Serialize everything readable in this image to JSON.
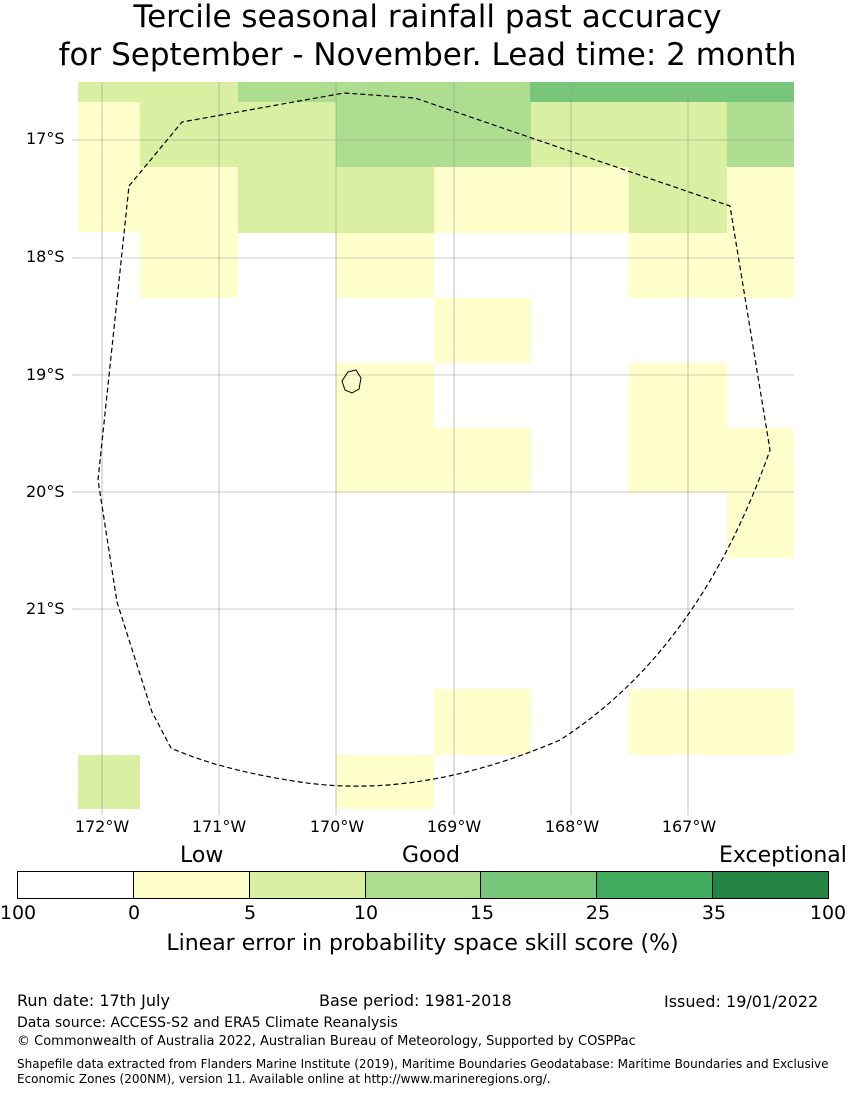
{
  "title": {
    "line1": "Tercile seasonal rainfall past accuracy",
    "line2": "for September - November. Lead time: 2 month"
  },
  "map": {
    "lat_labels": [
      "17°S",
      "18°S",
      "19°S",
      "20°S",
      "21°S"
    ],
    "lon_labels": [
      "172°W",
      "171°W",
      "170°W",
      "169°W",
      "168°W",
      "167°W"
    ],
    "skill_grid_description_rows": [
      {
        "lat_band": "top",
        "cells": [
          "5-10",
          "5-10",
          "10-15",
          "10-15",
          "10-15",
          "15-25",
          "15-25"
        ]
      }
    ]
  },
  "legend": {
    "categories": [
      "Low",
      "Good",
      "Exceptional"
    ],
    "colors": [
      "#ffffff",
      "#ffffcc",
      "#d9f0a3",
      "#addd8e",
      "#78c679",
      "#41ab5d",
      "#238443"
    ],
    "ticks": [
      "100",
      "0",
      "5",
      "10",
      "15",
      "25",
      "35",
      "100"
    ],
    "label": "Linear error in probability space skill score (%)"
  },
  "footer": {
    "run_date": "Run date: 17th July",
    "base_period": "Base period: 1981-2018",
    "issued": "Issued: 19/01/2022",
    "data_source": "Data source: ACCESS-S2 and ERA5 Climate Reanalysis",
    "copyright": "© Commonwealth of Australia 2022, Australian Bureau of Meteorology, Supported by COSPPac",
    "shapefile": "Shapefile data extracted from Flanders Marine Institute (2019), Maritime Boundaries Geodatabase: Maritime Boundaries and Exclusive Economic Zones (200NM), version 11. Available online at http://www.marineregions.org/."
  }
}
